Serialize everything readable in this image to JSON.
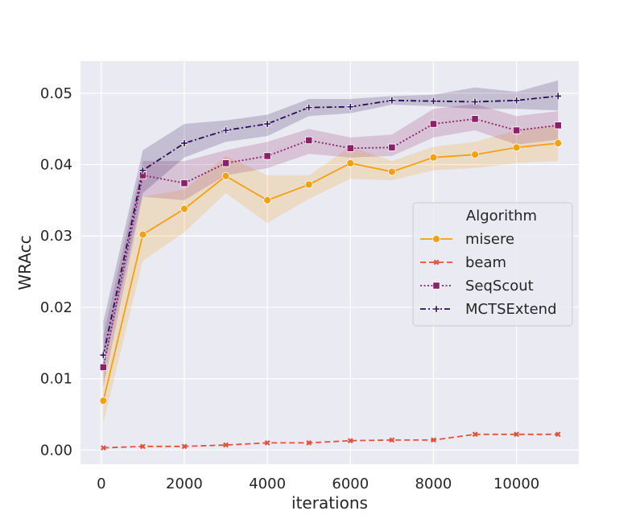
{
  "chart_data": {
    "type": "line",
    "title": "",
    "xlabel": "iterations",
    "ylabel": "WRAcc",
    "xlim": [
      -500,
      11500
    ],
    "ylim": [
      -0.002,
      0.0545
    ],
    "xticks": [
      0,
      2000,
      4000,
      6000,
      8000,
      10000
    ],
    "xtick_labels": [
      "0",
      "2000",
      "4000",
      "6000",
      "8000",
      "10000"
    ],
    "yticks": [
      0.0,
      0.01,
      0.02,
      0.03,
      0.04,
      0.05
    ],
    "ytick_labels": [
      "0.00",
      "0.01",
      "0.02",
      "0.03",
      "0.04",
      "0.05"
    ],
    "grid": true,
    "legend": {
      "title": "Algorithm",
      "placement": "center-right"
    },
    "x": [
      50,
      1000,
      2000,
      3000,
      4000,
      5000,
      6000,
      7000,
      8000,
      9000,
      10000,
      11000
    ],
    "series": [
      {
        "name": "misere",
        "color": "#f5a00f",
        "line_style": "solid",
        "marker": "circle",
        "values": [
          0.0069,
          0.0302,
          0.0338,
          0.0384,
          0.035,
          0.0372,
          0.0402,
          0.039,
          0.041,
          0.0414,
          0.0424,
          0.043
        ],
        "ci_lower": [
          0.0038,
          0.0265,
          0.0305,
          0.036,
          0.0318,
          0.0352,
          0.038,
          0.0378,
          0.0392,
          0.0395,
          0.0402,
          0.0405
        ],
        "ci_upper": [
          0.0108,
          0.0355,
          0.0365,
          0.0412,
          0.0385,
          0.0385,
          0.0425,
          0.0405,
          0.0425,
          0.0432,
          0.0448,
          0.0455
        ]
      },
      {
        "name": "beam",
        "color": "#e1523d",
        "line_style": "dashed",
        "marker": "x",
        "values": [
          0.0003,
          0.0005,
          0.0005,
          0.0007,
          0.001,
          0.001,
          0.0013,
          0.0014,
          0.0014,
          0.0022,
          0.0022,
          0.0022
        ]
      },
      {
        "name": "SeqScout",
        "color": "#8a226a",
        "line_style": "dotted",
        "marker": "square",
        "values": [
          0.0116,
          0.0385,
          0.0374,
          0.0402,
          0.0412,
          0.0434,
          0.0423,
          0.0424,
          0.0457,
          0.0464,
          0.0448,
          0.0455
        ],
        "ci_lower": [
          0.0088,
          0.0355,
          0.035,
          0.0385,
          0.0395,
          0.0415,
          0.041,
          0.0412,
          0.0438,
          0.0448,
          0.0428,
          0.0435
        ],
        "ci_upper": [
          0.016,
          0.0405,
          0.0405,
          0.042,
          0.0432,
          0.045,
          0.0438,
          0.0442,
          0.0478,
          0.0485,
          0.0468,
          0.0475
        ]
      },
      {
        "name": "MCTSExtend",
        "color": "#2e0d57",
        "line_style": "dashdot",
        "marker": "plus",
        "values": [
          0.0133,
          0.0392,
          0.043,
          0.0448,
          0.0457,
          0.048,
          0.0481,
          0.049,
          0.0489,
          0.0488,
          0.049,
          0.0496
        ],
        "ci_lower": [
          0.011,
          0.036,
          0.041,
          0.0432,
          0.044,
          0.0468,
          0.0472,
          0.0484,
          0.0482,
          0.0478,
          0.0478,
          0.0476
        ],
        "ci_upper": [
          0.018,
          0.042,
          0.0457,
          0.0462,
          0.047,
          0.0492,
          0.0492,
          0.0496,
          0.0498,
          0.0508,
          0.0502,
          0.0518
        ]
      }
    ]
  }
}
